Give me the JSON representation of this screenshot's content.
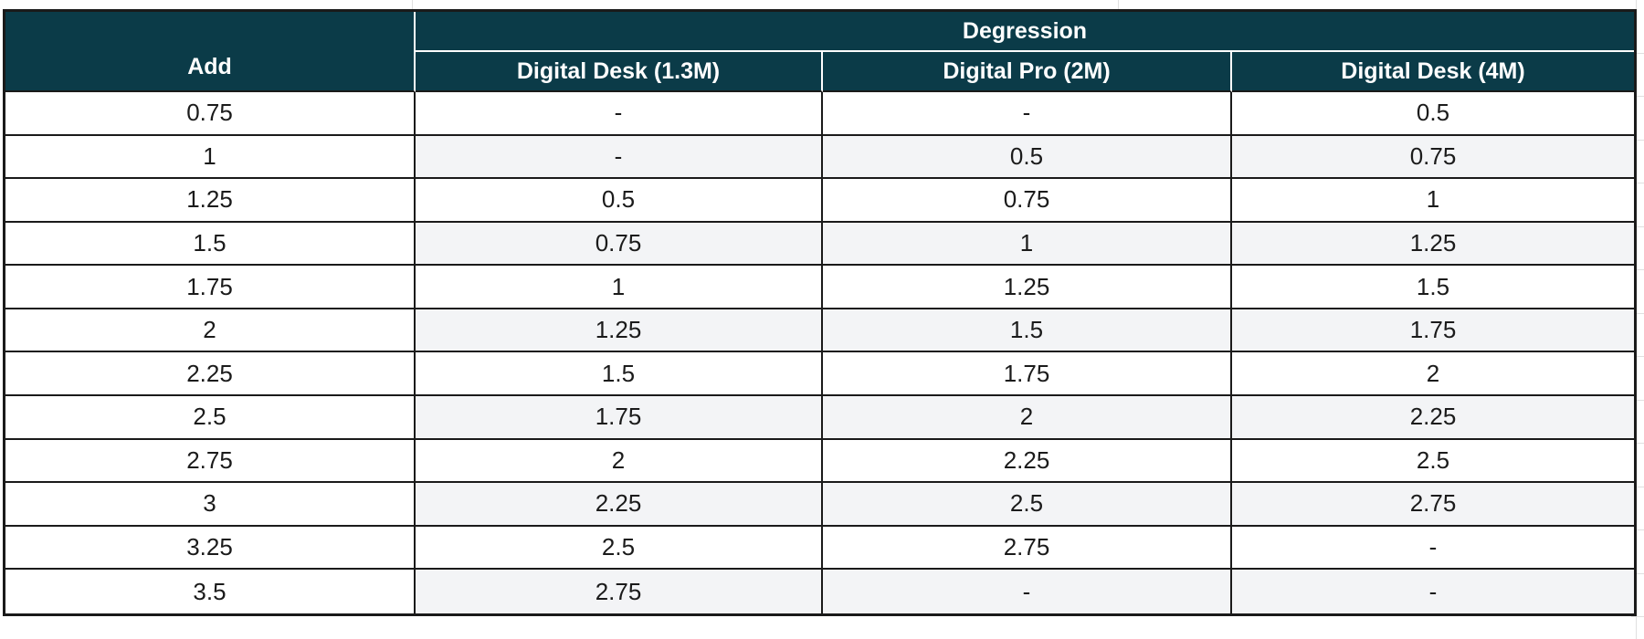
{
  "table": {
    "group_header": "Degression",
    "corner_header": "Add",
    "columns": [
      "Digital Desk (1.3M)",
      "Digital Pro (2M)",
      "Digital Desk (4M)"
    ],
    "rows": [
      {
        "add": "0.75",
        "values": [
          "-",
          "-",
          "0.5"
        ]
      },
      {
        "add": "1",
        "values": [
          "-",
          "0.5",
          "0.75"
        ]
      },
      {
        "add": "1.25",
        "values": [
          "0.5",
          "0.75",
          "1"
        ]
      },
      {
        "add": "1.5",
        "values": [
          "0.75",
          "1",
          "1.25"
        ]
      },
      {
        "add": "1.75",
        "values": [
          "1",
          "1.25",
          "1.5"
        ]
      },
      {
        "add": "2",
        "values": [
          "1.25",
          "1.5",
          "1.75"
        ]
      },
      {
        "add": "2.25",
        "values": [
          "1.5",
          "1.75",
          "2"
        ]
      },
      {
        "add": "2.5",
        "values": [
          "1.75",
          "2",
          "2.25"
        ]
      },
      {
        "add": "2.75",
        "values": [
          "2",
          "2.25",
          "2.5"
        ]
      },
      {
        "add": "3",
        "values": [
          "2.25",
          "2.5",
          "2.75"
        ]
      },
      {
        "add": "3.25",
        "values": [
          "2.5",
          "2.75",
          "-"
        ]
      },
      {
        "add": "3.5",
        "values": [
          "2.75",
          "-",
          "-"
        ]
      }
    ]
  },
  "colors": {
    "header_bg": "#0b3b48",
    "header_text": "#ffffff",
    "stripe_bg": "#f3f4f6",
    "row_bg": "#ffffff",
    "border": "#1a1a1a",
    "header_divider": "#ffffff",
    "sheet_gridline": "#e0e0e0",
    "body_text": "#1b1b1b"
  }
}
